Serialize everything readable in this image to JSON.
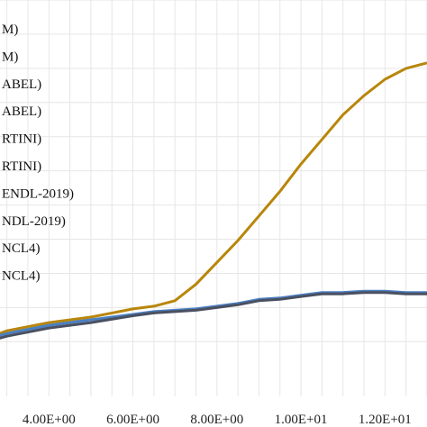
{
  "chart_data": {
    "type": "line",
    "title": "",
    "xlabel": "",
    "ylabel": "",
    "xlim": [
      2.3,
      13.0
    ],
    "x_ticks": [
      4,
      6,
      8,
      10,
      12
    ],
    "x_tick_labels": [
      "4.00E+00",
      "6.00E+00",
      "8.00E+00",
      "1.00E+01",
      "1.20E+01"
    ],
    "grid": true,
    "legend_entries": [
      "M)",
      "M)",
      "ABEL)",
      "ABEL)",
      "RTINI)",
      "RTINI)",
      "ENDL-2019)",
      "NDL-2019)",
      "NCL4)",
      "NCL4)"
    ],
    "series": [
      {
        "color": "#b8860b",
        "x": [
          2.3,
          3.0,
          4.0,
          5.0,
          6.0,
          6.5,
          7.0,
          7.5,
          8.0,
          8.5,
          9.0,
          9.5,
          10.0,
          10.5,
          11.0,
          11.5,
          12.0,
          12.5,
          13.0
        ],
        "y": [
          0.0,
          0.04,
          0.07,
          0.09,
          0.12,
          0.13,
          0.15,
          0.21,
          0.29,
          0.37,
          0.46,
          0.55,
          0.65,
          0.74,
          0.83,
          0.9,
          0.96,
          1.0,
          1.02
        ]
      },
      {
        "color": "#4a7fc0",
        "x": [
          2.3,
          3.0,
          4.0,
          5.0,
          6.0,
          6.5,
          7.0,
          7.5,
          8.0,
          8.5,
          9.0,
          9.5,
          10.0,
          10.5,
          11.0,
          11.5,
          12.0,
          12.5,
          13.0
        ],
        "y": [
          0.0,
          0.03,
          0.06,
          0.08,
          0.1,
          0.11,
          0.115,
          0.12,
          0.13,
          0.14,
          0.155,
          0.16,
          0.17,
          0.18,
          0.18,
          0.185,
          0.185,
          0.18,
          0.18
        ]
      },
      {
        "color": "#4a5060",
        "x": [
          2.3,
          3.0,
          4.0,
          5.0,
          6.0,
          6.5,
          7.0,
          7.5,
          8.0,
          8.5,
          9.0,
          9.5,
          10.0,
          10.5,
          11.0,
          11.5,
          12.0,
          12.5,
          13.0
        ],
        "y": [
          -0.01,
          0.02,
          0.05,
          0.07,
          0.095,
          0.105,
          0.11,
          0.115,
          0.125,
          0.135,
          0.15,
          0.155,
          0.165,
          0.175,
          0.175,
          0.18,
          0.18,
          0.175,
          0.175
        ]
      }
    ]
  }
}
